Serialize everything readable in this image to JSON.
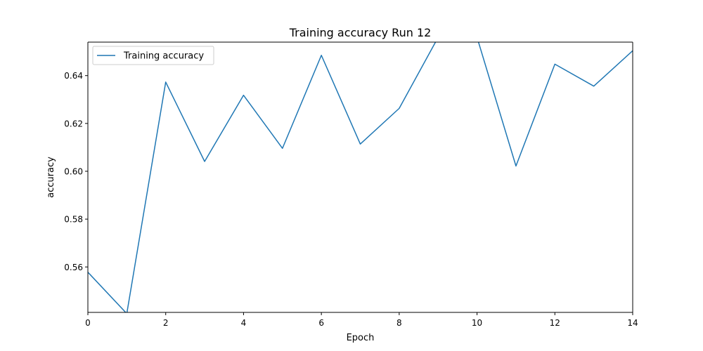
{
  "chart_data": {
    "type": "line",
    "title": "Training accuracy Run 12",
    "xlabel": "Epoch",
    "ylabel": "accuracy",
    "xlim": [
      0,
      14
    ],
    "ylim": [
      0.541,
      0.654
    ],
    "xticks": [
      0,
      2,
      4,
      6,
      8,
      10,
      12,
      14
    ],
    "yticks": [
      0.56,
      0.58,
      0.6,
      0.62,
      0.64
    ],
    "ytick_labels": [
      "0.56",
      "0.58",
      "0.60",
      "0.62",
      "0.64"
    ],
    "grid": false,
    "legend": {
      "position": "top-left"
    },
    "series": [
      {
        "name": "Training accuracy",
        "color": "#1f77b4",
        "x": [
          0,
          1,
          2,
          3,
          4,
          5,
          6,
          7,
          8,
          9,
          10,
          11,
          12,
          13,
          14
        ],
        "y": [
          0.5578,
          0.5405,
          0.6373,
          0.6041,
          0.6318,
          0.6096,
          0.6485,
          0.6114,
          0.6263,
          0.656,
          0.656,
          0.6022,
          0.6448,
          0.6356,
          0.6504
        ]
      }
    ]
  }
}
